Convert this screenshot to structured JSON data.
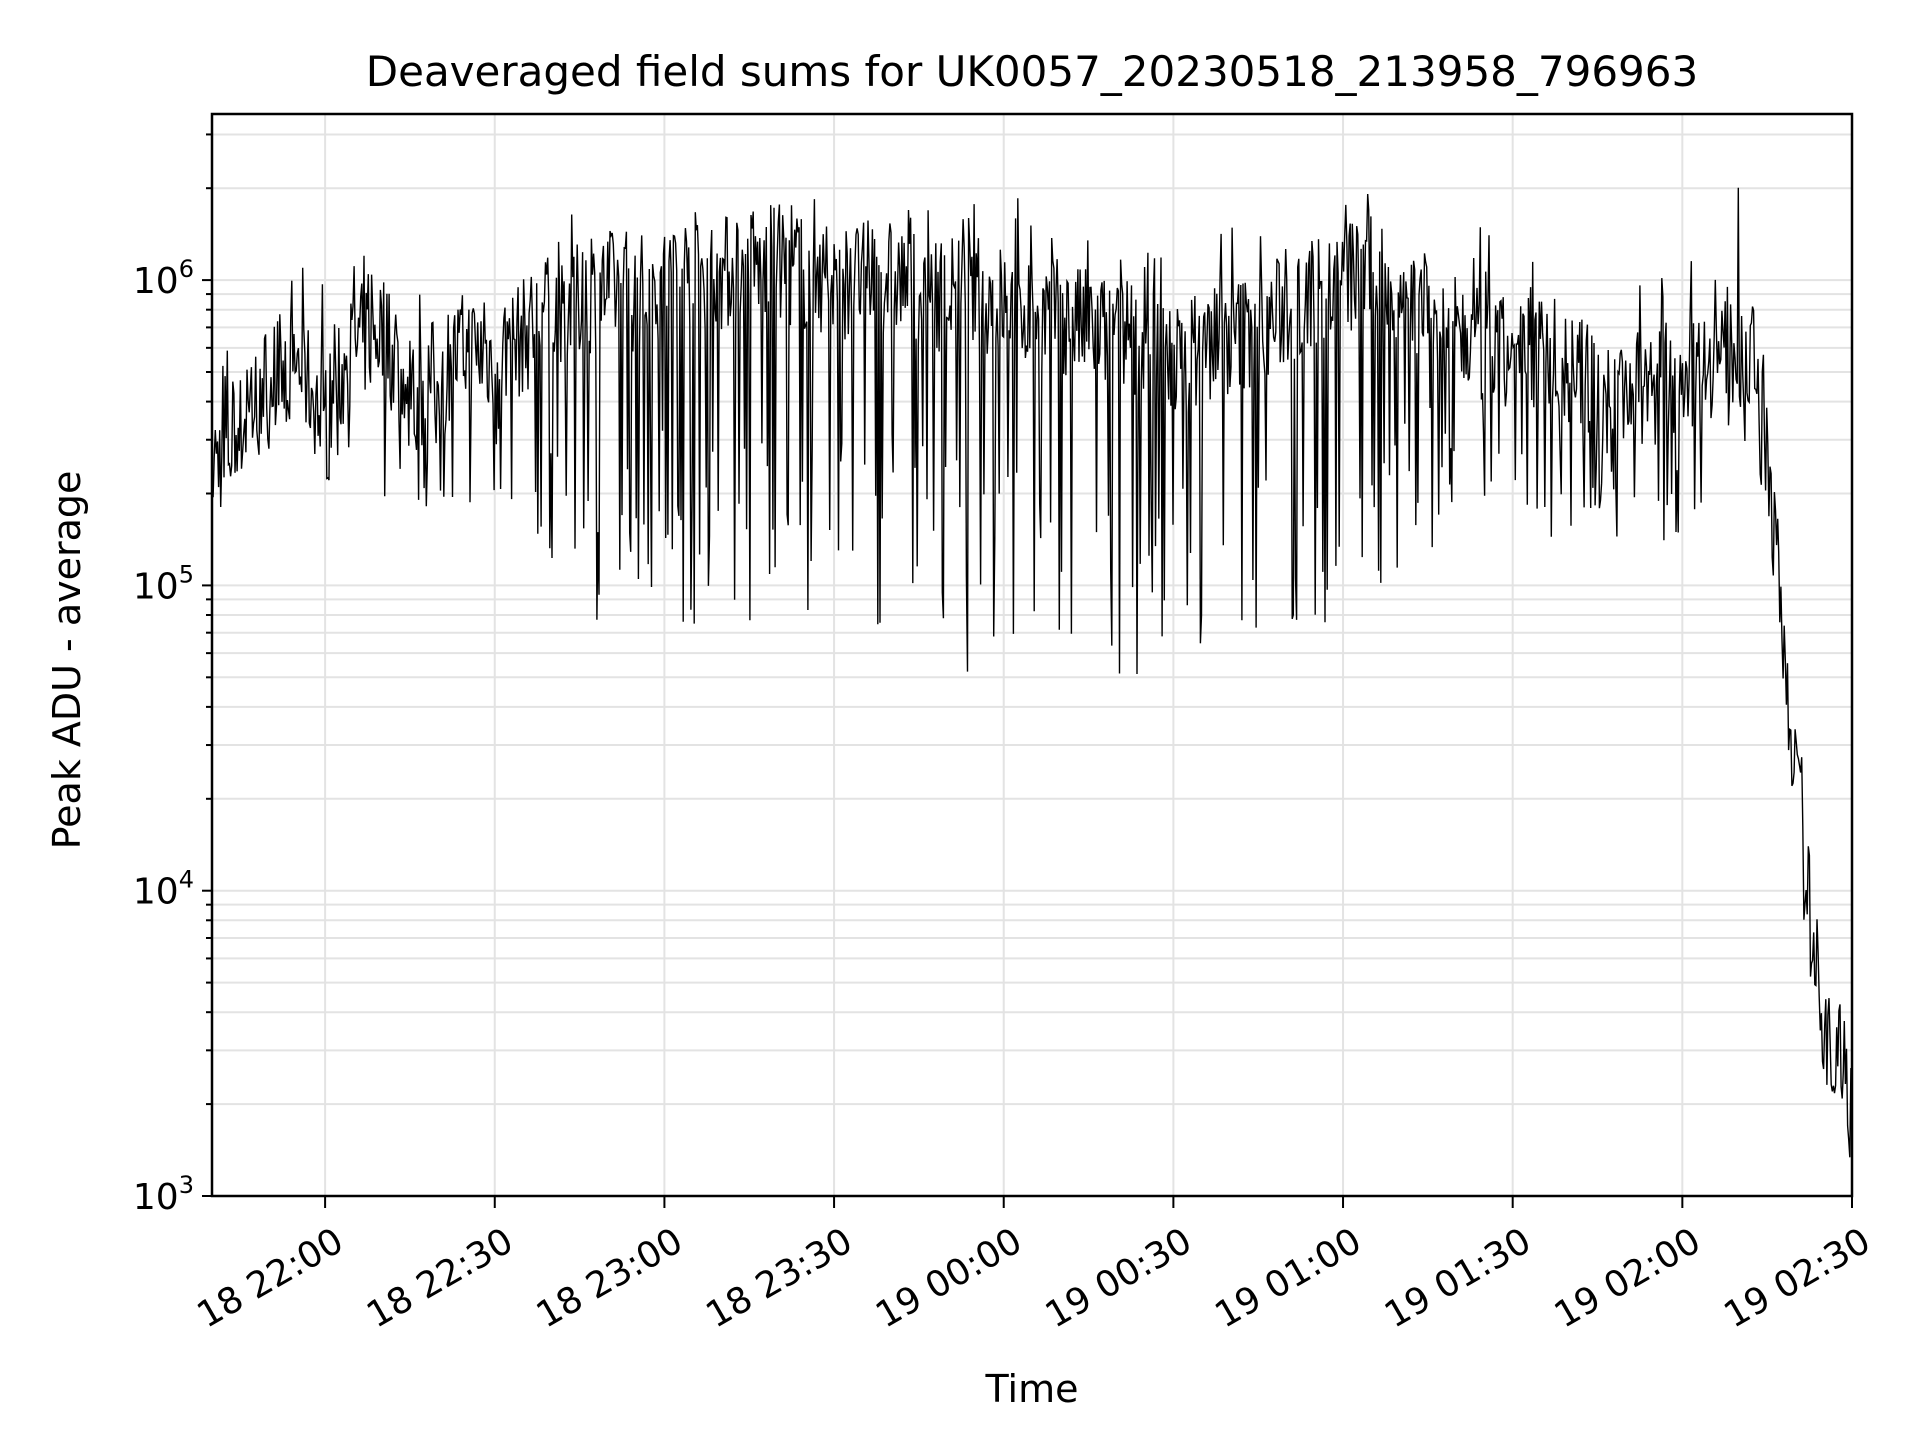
{
  "chart_data": {
    "type": "line",
    "title": "Deaveraged field sums for UK0057_20230518_213958_796963",
    "xlabel": "Time",
    "ylabel": "Peak ADU - average",
    "yscale": "log",
    "ylim": [
      1000,
      3500000
    ],
    "xlim": [
      "2023-05-18 21:40",
      "2023-05-19 02:30"
    ],
    "x_tick_labels": [
      "18 22:00",
      "18 22:30",
      "18 23:00",
      "18 23:30",
      "19 00:00",
      "19 00:30",
      "19 01:00",
      "19 01:30",
      "19 02:00",
      "19 02:30"
    ],
    "x_ticks": [
      "2023-05-18 22:00",
      "2023-05-18 22:30",
      "2023-05-18 23:00",
      "2023-05-18 23:30",
      "2023-05-19 00:00",
      "2023-05-19 00:30",
      "2023-05-19 01:00",
      "2023-05-19 01:30",
      "2023-05-19 02:00",
      "2023-05-19 02:30"
    ],
    "y_ticks": [
      {
        "value": 1000,
        "base": "10",
        "exp": "3"
      },
      {
        "value": 10000,
        "base": "10",
        "exp": "4"
      },
      {
        "value": 100000,
        "base": "10",
        "exp": "5"
      },
      {
        "value": 1000000,
        "base": "10",
        "exp": "6"
      }
    ],
    "grid": true,
    "line_color": "#000000",
    "series": [
      {
        "x": [
          "2023-05-18 21:40",
          "2023-05-18 21:45",
          "2023-05-18 21:50",
          "2023-05-18 21:55",
          "2023-05-18 22:00",
          "2023-05-18 22:05",
          "2023-05-18 22:10",
          "2023-05-18 22:15",
          "2023-05-18 22:20",
          "2023-05-18 22:25",
          "2023-05-18 22:30",
          "2023-05-18 22:35",
          "2023-05-18 22:40",
          "2023-05-18 22:45",
          "2023-05-18 22:50",
          "2023-05-18 22:55",
          "2023-05-18 23:00",
          "2023-05-18 23:05",
          "2023-05-18 23:10",
          "2023-05-18 23:15",
          "2023-05-18 23:20",
          "2023-05-18 23:25",
          "2023-05-18 23:30",
          "2023-05-18 23:35",
          "2023-05-18 23:40",
          "2023-05-18 23:45",
          "2023-05-18 23:50",
          "2023-05-18 23:55",
          "2023-05-19 00:00",
          "2023-05-19 00:05",
          "2023-05-19 00:10",
          "2023-05-19 00:15",
          "2023-05-19 00:20",
          "2023-05-19 00:25",
          "2023-05-19 00:30",
          "2023-05-19 00:35",
          "2023-05-19 00:40",
          "2023-05-19 00:45",
          "2023-05-19 00:50",
          "2023-05-19 00:55",
          "2023-05-19 01:00",
          "2023-05-19 01:05",
          "2023-05-19 01:10",
          "2023-05-19 01:15",
          "2023-05-19 01:20",
          "2023-05-19 01:25",
          "2023-05-19 01:30",
          "2023-05-19 01:35",
          "2023-05-19 01:40",
          "2023-05-19 01:45",
          "2023-05-19 01:50",
          "2023-05-19 01:55",
          "2023-05-19 02:00",
          "2023-05-19 02:05",
          "2023-05-19 02:10",
          "2023-05-19 02:13",
          "2023-05-19 02:15",
          "2023-05-19 02:17",
          "2023-05-19 02:19",
          "2023-05-19 02:21",
          "2023-05-19 02:23",
          "2023-05-19 02:25",
          "2023-05-19 02:27",
          "2023-05-19 02:29",
          "2023-05-19 02:30"
        ],
        "median": [
          250000,
          320000,
          480000,
          550000,
          350000,
          600000,
          700000,
          400000,
          500000,
          600000,
          550000,
          650000,
          800000,
          850000,
          950000,
          900000,
          1000000,
          1100000,
          1050000,
          1100000,
          1150000,
          1050000,
          1000000,
          1000000,
          1050000,
          950000,
          900000,
          900000,
          850000,
          800000,
          750000,
          700000,
          650000,
          600000,
          550000,
          600000,
          650000,
          700000,
          800000,
          900000,
          1000000,
          1100000,
          900000,
          800000,
          650000,
          600000,
          550000,
          600000,
          500000,
          450000,
          450000,
          450000,
          500000,
          550000,
          600000,
          550000,
          300000,
          100000,
          40000,
          15000,
          7000,
          4000,
          3000,
          2500,
          1800
        ],
        "low": [
          190000,
          230000,
          280000,
          300000,
          210000,
          300000,
          180000,
          150000,
          200000,
          150000,
          200000,
          120000,
          90000,
          80000,
          60000,
          90000,
          80000,
          70000,
          70000,
          65000,
          80000,
          60000,
          70000,
          60000,
          60000,
          55000,
          55000,
          50000,
          60000,
          55000,
          50000,
          45000,
          45000,
          50000,
          60000,
          50000,
          55000,
          55000,
          60000,
          65000,
          70000,
          65000,
          120000,
          130000,
          130000,
          130000,
          120000,
          90000,
          150000,
          150000,
          130000,
          130000,
          150000,
          200000,
          300000,
          200000,
          150000,
          80000,
          30000,
          12000,
          5000,
          2500,
          1500,
          1800,
          1500
        ],
        "high": [
          560000,
          700000,
          1150000,
          1000000,
          1600000,
          1300000,
          1100000,
          1000000,
          1000000,
          1050000,
          1200000,
          1400000,
          1500000,
          1700000,
          1500000,
          1500000,
          1600000,
          1700000,
          1700000,
          1800000,
          1800000,
          1900000,
          1800000,
          1700000,
          1800000,
          1700000,
          1700000,
          1800000,
          2300000,
          1600000,
          1500000,
          1600000,
          1500000,
          1400000,
          1400000,
          1500000,
          1600000,
          1500000,
          1600000,
          1800000,
          2300000,
          1900000,
          2100000,
          1700000,
          1500000,
          1500000,
          1400000,
          1400000,
          1100000,
          1000000,
          1100000,
          1000000,
          1200000,
          1200000,
          2050000,
          1100000,
          600000,
          200000,
          80000,
          30000,
          10000,
          6000,
          5000,
          4000,
          3000
        ]
      }
    ]
  }
}
